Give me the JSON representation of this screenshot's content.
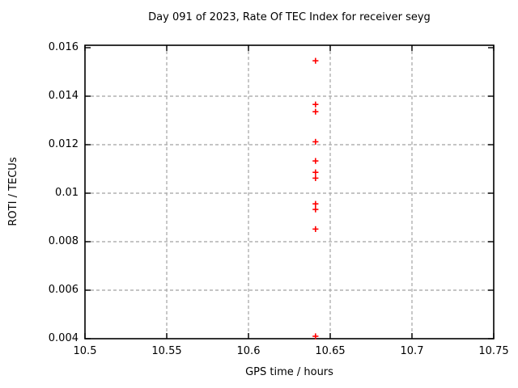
{
  "chart_data": {
    "type": "scatter",
    "title": "Day 091 of 2023, Rate Of TEC Index for receiver seyg",
    "xlabel": "GPS time / hours",
    "ylabel": "ROTI / TECUs",
    "xlim": [
      10.5,
      10.75
    ],
    "ylim": [
      0.004,
      0.016
    ],
    "xticks": {
      "values": [
        10.5,
        10.55,
        10.6,
        10.65,
        10.7,
        10.75
      ],
      "labels": [
        "10.5",
        "10.55",
        "10.6",
        "10.65",
        "10.7",
        "10.75"
      ]
    },
    "yticks": {
      "values": [
        0.016,
        0.014,
        0.012,
        0.01,
        0.008,
        0.006,
        0.004
      ],
      "labels": [
        "0.016",
        "0.014",
        "0.012",
        "0.01",
        "0.008",
        "0.006",
        "0.004"
      ]
    },
    "grid": true,
    "legend_position": "none",
    "marker": "plus",
    "marker_color": "#ff0000",
    "grid_color": "#b0b0b0",
    "border_color": "#000000",
    "series": [
      {
        "name": "ROTI",
        "x": [
          10.641,
          10.641,
          10.641,
          10.641,
          10.641,
          10.641,
          10.641,
          10.641,
          10.641,
          10.641,
          10.641
        ],
        "y": [
          0.01546,
          0.01366,
          0.01336,
          0.01212,
          0.01133,
          0.01086,
          0.01062,
          0.00956,
          0.00933,
          0.00852,
          0.0041
        ]
      }
    ]
  }
}
